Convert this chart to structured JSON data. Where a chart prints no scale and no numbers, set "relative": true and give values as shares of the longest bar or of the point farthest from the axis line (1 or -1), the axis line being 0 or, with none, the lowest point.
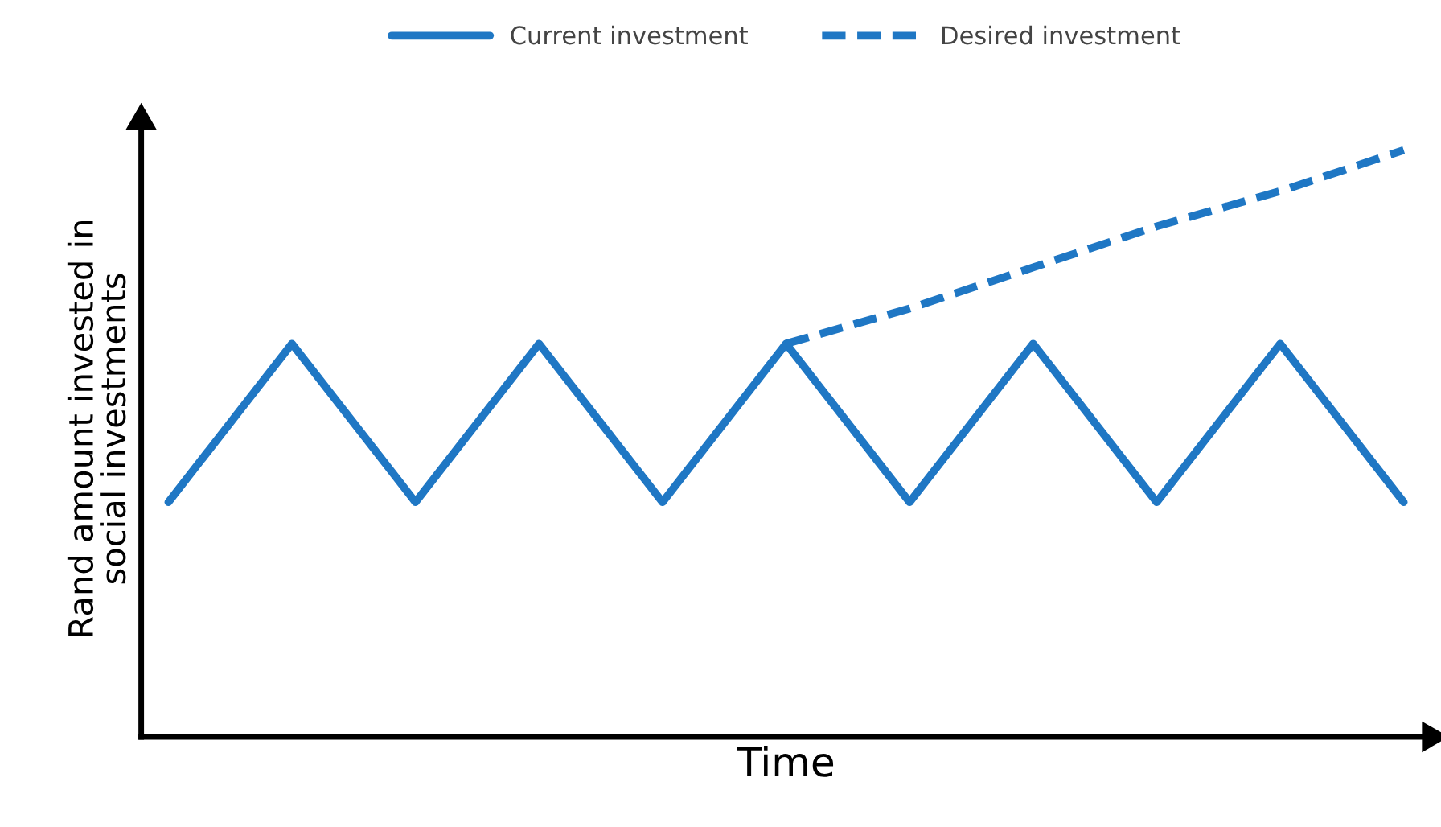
{
  "chart_data": {
    "type": "line",
    "relative": true,
    "xlabel": "Time",
    "ylabel": "Rand amount invested in\nsocial investments",
    "categories": [
      null,
      null,
      null,
      null,
      null,
      null,
      null,
      null,
      null,
      null,
      null
    ],
    "series": [
      {
        "name": "Current investment",
        "color": "#1f77c4",
        "line_style": "solid",
        "values": [
          0.4,
          0.67,
          0.4,
          0.67,
          0.4,
          0.67,
          0.4,
          0.67,
          0.4,
          0.67,
          0.4
        ]
      },
      {
        "name": "Desired investment",
        "color": "#1f77c4",
        "line_style": "dashed",
        "values": [
          null,
          null,
          null,
          null,
          null,
          0.67,
          0.73,
          0.8,
          0.87,
          0.93,
          1.0
        ]
      }
    ],
    "legend": "top",
    "marker": "none"
  }
}
